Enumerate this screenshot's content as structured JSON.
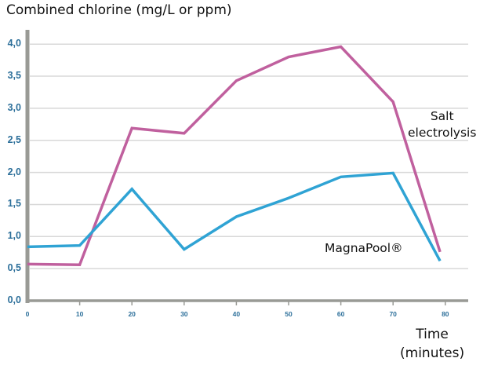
{
  "chart_data": {
    "type": "line",
    "title": "Combined chlorine (mg/L or ppm)",
    "xlabel": "Time (minutes)",
    "xlabel_lines": [
      "Time",
      "(minutes)"
    ],
    "ylabel": "Combined chlorine (mg/L or ppm)",
    "x_ticks": [
      "0",
      "10",
      "20",
      "30",
      "40",
      "50",
      "60",
      "70",
      "80"
    ],
    "y_ticks": [
      "0,0",
      "0,5",
      "1,0",
      "1,5",
      "2,0",
      "2,5",
      "3,0",
      "3,5",
      "4,0"
    ],
    "xlim": [
      0,
      80
    ],
    "ylim": [
      0,
      4.0
    ],
    "grid": "horizontal",
    "legend": "inline annotations",
    "x": [
      0,
      10,
      20,
      30,
      40,
      50,
      60,
      70,
      79
    ],
    "series": [
      {
        "name": "Salt electrolysis",
        "label_lines": [
          "Salt",
          "electrolysis"
        ],
        "color": "#c0609e",
        "values": [
          0.57,
          0.56,
          2.69,
          2.61,
          3.43,
          3.8,
          3.96,
          3.1,
          0.76
        ]
      },
      {
        "name": "MagnaPool®",
        "label_lines": [
          "MagnaPool®"
        ],
        "color": "#2fa3d4",
        "values": [
          0.84,
          0.86,
          1.74,
          0.8,
          1.31,
          1.6,
          1.93,
          1.99,
          0.62
        ]
      }
    ]
  },
  "colors": {
    "axis": "#999a95",
    "grid": "#d8d8d8",
    "tick_label": "#2c6f9a"
  }
}
